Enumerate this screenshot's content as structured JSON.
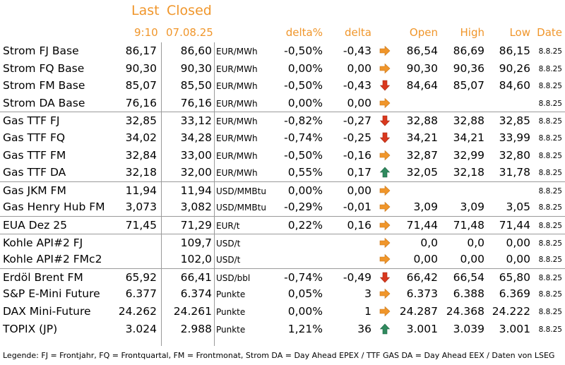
{
  "header": {
    "last": "Last",
    "closed": "Closed",
    "last_time": "9:10",
    "closed_date": "07.08.25",
    "delta_pct": "delta%",
    "delta": "delta",
    "open": "Open",
    "high": "High",
    "low": "Low",
    "date": "Date"
  },
  "colors": {
    "header": "#f0962b",
    "arrow_flat": "#f0962b",
    "arrow_down": "#d9381e",
    "arrow_up": "#2f8a5e"
  },
  "rows": [
    {
      "name": "Strom FJ Base",
      "last": "86,17",
      "closed": "86,60",
      "unit": "EUR/MWh",
      "delta_pct": "-0,50%",
      "delta": "-0,43",
      "trend": "flat",
      "open": "86,54",
      "high": "86,69",
      "low": "86,15",
      "date": "8.8.25",
      "group_start": false
    },
    {
      "name": "Strom FQ Base",
      "last": "90,30",
      "closed": "90,30",
      "unit": "EUR/MWh",
      "delta_pct": "0,00%",
      "delta": "0,00",
      "trend": "flat",
      "open": "90,30",
      "high": "90,36",
      "low": "90,26",
      "date": "8.8.25",
      "group_start": false
    },
    {
      "name": "Strom FM Base",
      "last": "85,07",
      "closed": "85,50",
      "unit": "EUR/MWh",
      "delta_pct": "-0,50%",
      "delta": "-0,43",
      "trend": "down",
      "open": "84,64",
      "high": "85,07",
      "low": "84,60",
      "date": "8.8.25",
      "group_start": false
    },
    {
      "name": "Strom DA Base",
      "last": "76,16",
      "closed": "76,16",
      "unit": "EUR/MWh",
      "delta_pct": "0,00%",
      "delta": "0,00",
      "trend": "flat",
      "open": "",
      "high": "",
      "low": "",
      "date": "8.8.25",
      "group_start": false
    },
    {
      "name": "Gas TTF FJ",
      "last": "32,85",
      "closed": "33,12",
      "unit": "EUR/MWh",
      "delta_pct": "-0,82%",
      "delta": "-0,27",
      "trend": "down",
      "open": "32,88",
      "high": "32,88",
      "low": "32,85",
      "date": "8.8.25",
      "group_start": true
    },
    {
      "name": "Gas TTF FQ",
      "last": "34,02",
      "closed": "34,28",
      "unit": "EUR/MWh",
      "delta_pct": "-0,74%",
      "delta": "-0,25",
      "trend": "down",
      "open": "34,21",
      "high": "34,21",
      "low": "33,99",
      "date": "8.8.25",
      "group_start": false
    },
    {
      "name": "Gas TTF FM",
      "last": "32,84",
      "closed": "33,00",
      "unit": "EUR/MWh",
      "delta_pct": "-0,50%",
      "delta": "-0,16",
      "trend": "flat",
      "open": "32,87",
      "high": "32,99",
      "low": "32,80",
      "date": "8.8.25",
      "group_start": false
    },
    {
      "name": "Gas TTF DA",
      "last": "32,18",
      "closed": "32,00",
      "unit": "EUR/MWh",
      "delta_pct": "0,55%",
      "delta": "0,17",
      "trend": "up",
      "open": "32,05",
      "high": "32,18",
      "low": "31,78",
      "date": "8.8.25",
      "group_start": false
    },
    {
      "name": "Gas JKM FM",
      "last": "11,94",
      "closed": "11,94",
      "unit": "USD/MMBtu",
      "delta_pct": "0,00%",
      "delta": "0,00",
      "trend": "flat",
      "open": "",
      "high": "",
      "low": "",
      "date": "8.8.25",
      "group_start": true
    },
    {
      "name": "Gas Henry Hub FM",
      "last": "3,073",
      "closed": "3,082",
      "unit": "USD/MMBtu",
      "delta_pct": "-0,29%",
      "delta": "-0,01",
      "trend": "flat",
      "open": "3,09",
      "high": "3,09",
      "low": "3,05",
      "date": "8.8.25",
      "group_start": false
    },
    {
      "name": "EUA Dez 25",
      "last": "71,45",
      "closed": "71,29",
      "unit": "EUR/t",
      "delta_pct": "0,22%",
      "delta": "0,16",
      "trend": "flat",
      "open": "71,44",
      "high": "71,48",
      "low": "71,44",
      "date": "8.8.25",
      "group_start": true
    },
    {
      "name": "Kohle API#2 FJ",
      "last": "",
      "closed": "109,7",
      "unit": "USD/t",
      "delta_pct": "",
      "delta": "",
      "trend": "flat",
      "open": "0,0",
      "high": "0,0",
      "low": "0,00",
      "date": "8.8.25",
      "group_start": true
    },
    {
      "name": "Kohle API#2 FMc2",
      "last": "",
      "closed": "102,0",
      "unit": "USD/t",
      "delta_pct": "",
      "delta": "",
      "trend": "flat",
      "open": "0,00",
      "high": "0,00",
      "low": "0,00",
      "date": "8.8.25",
      "group_start": false
    },
    {
      "name": "Erdöl Brent FM",
      "last": "65,92",
      "closed": "66,41",
      "unit": "USD/bbl",
      "delta_pct": "-0,74%",
      "delta": "-0,49",
      "trend": "down",
      "open": "66,42",
      "high": "66,54",
      "low": "65,80",
      "date": "8.8.25",
      "group_start": true
    },
    {
      "name": "S&P E-Mini Future",
      "last": "6.377",
      "closed": "6.374",
      "unit": "Punkte",
      "delta_pct": "0,05%",
      "delta": "3",
      "trend": "flat",
      "open": "6.373",
      "high": "6.388",
      "low": "6.369",
      "date": "8.8.25",
      "group_start": false
    },
    {
      "name": "DAX Mini-Future",
      "last": "24.262",
      "closed": "24.261",
      "unit": "Punkte",
      "delta_pct": "0,00%",
      "delta": "1",
      "trend": "flat",
      "open": "24.287",
      "high": "24.368",
      "low": "24.222",
      "date": "8.8.25",
      "group_start": false
    },
    {
      "name": "TOPIX (JP)",
      "last": "3.024",
      "closed": "2.988",
      "unit": "Punkte",
      "delta_pct": "1,21%",
      "delta": "36",
      "trend": "up",
      "open": "3.001",
      "high": "3.039",
      "low": "3.001",
      "date": "8.8.25",
      "group_start": false
    }
  ],
  "legend": "Legende: FJ = Frontjahr, FQ = Frontquartal, FM = Frontmonat, Strom DA = Day Ahead EPEX / TTF GAS DA = Day Ahead EEX / Daten von LSEG"
}
